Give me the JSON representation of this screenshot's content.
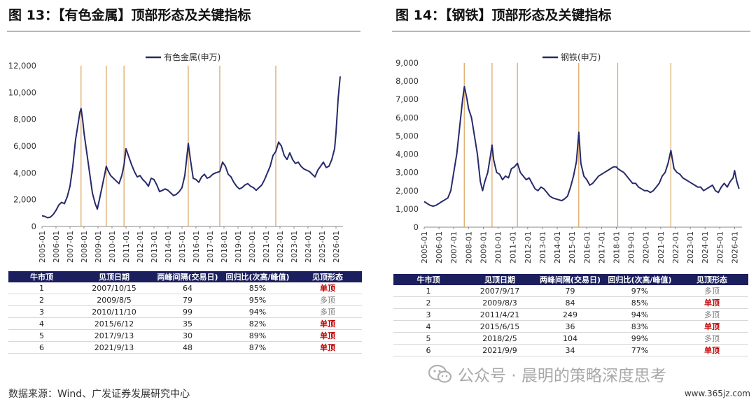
{
  "left": {
    "title": "图 13：【有色金属】顶部形态及关键指标",
    "table": {
      "headers": [
        "牛市顶",
        "见顶日期",
        "两峰间隔(交易日)",
        "回归比(次高/峰值)",
        "见顶形态"
      ],
      "rows": [
        [
          "1",
          "2007/10/15",
          "64",
          "85%",
          "单顶"
        ],
        [
          "2",
          "2009/8/5",
          "79",
          "95%",
          "多顶"
        ],
        [
          "3",
          "2010/11/10",
          "99",
          "94%",
          "多顶"
        ],
        [
          "4",
          "2015/6/12",
          "35",
          "82%",
          "单顶"
        ],
        [
          "5",
          "2017/9/13",
          "30",
          "89%",
          "单顶"
        ],
        [
          "6",
          "2021/9/13",
          "48",
          "87%",
          "单顶"
        ]
      ]
    }
  },
  "right": {
    "title": "图 14：【钢铁】顶部形态及关键指标",
    "table": {
      "headers": [
        "牛市顶",
        "见顶日期",
        "两峰间隔(交易日)",
        "回归比(次高/峰值)",
        "见顶形态"
      ],
      "rows": [
        [
          "1",
          "2007/9/17",
          "79",
          "97%",
          "多顶"
        ],
        [
          "2",
          "2009/8/3",
          "84",
          "85%",
          "单顶"
        ],
        [
          "3",
          "2011/4/21",
          "249",
          "94%",
          "多顶"
        ],
        [
          "4",
          "2015/6/15",
          "36",
          "83%",
          "单顶"
        ],
        [
          "5",
          "2018/2/5",
          "104",
          "99%",
          "多顶"
        ],
        [
          "6",
          "2021/9/9",
          "34",
          "77%",
          "单顶"
        ]
      ]
    }
  },
  "source": "数据来源：Wind、广发证券发展研究中心",
  "watermark": "公众号 · 晨明的策略深度思考",
  "site": "www.365jz.com",
  "colors": {
    "line": "#262a6b",
    "vline": "#d9a25c",
    "header": "#1b1f5e",
    "single": "#c00000"
  },
  "chart_data": [
    {
      "type": "line",
      "legend": "有色金属(申万)",
      "legend_position": "top",
      "ylim": [
        0,
        12000
      ],
      "yticks": [
        0,
        2000,
        4000,
        6000,
        8000,
        10000,
        12000
      ],
      "ytick_labels": [
        "0",
        "2,000",
        "4,000",
        "6,000",
        "8,000",
        "10,000",
        "12,000"
      ],
      "xlim": [
        2005.0,
        2026.5
      ],
      "xtick_labels": [
        "2005-01",
        "2006-01",
        "2007-01",
        "2008-01",
        "2009-01",
        "2010-01",
        "2011-01",
        "2012-01",
        "2013-01",
        "2014-01",
        "2015-01",
        "2016-01",
        "2017-01",
        "2018-01",
        "2019-01",
        "2020-01",
        "2021-01",
        "2022-01",
        "2023-01",
        "2024-01",
        "2025-01",
        "2026-01"
      ],
      "peak_markers": [
        "2007/10/15",
        "2009/8/5",
        "2010/11/10",
        "2015/6/12",
        "2017/9/13",
        "2021/9/13"
      ],
      "series": [
        {
          "name": "有色金属(申万)",
          "x": [
            2005.0,
            2005.2,
            2005.4,
            2005.6,
            2005.8,
            2006.0,
            2006.2,
            2006.4,
            2006.6,
            2006.8,
            2007.0,
            2007.2,
            2007.4,
            2007.6,
            2007.7,
            2007.79,
            2007.9,
            2008.0,
            2008.2,
            2008.4,
            2008.6,
            2008.8,
            2008.95,
            2009.1,
            2009.3,
            2009.5,
            2009.59,
            2009.7,
            2009.9,
            2010.1,
            2010.3,
            2010.5,
            2010.7,
            2010.86,
            2011.0,
            2011.2,
            2011.4,
            2011.6,
            2011.8,
            2012.0,
            2012.2,
            2012.4,
            2012.6,
            2012.8,
            2013.0,
            2013.2,
            2013.4,
            2013.6,
            2013.8,
            2014.0,
            2014.2,
            2014.4,
            2014.6,
            2014.8,
            2015.0,
            2015.2,
            2015.45,
            2015.6,
            2015.8,
            2016.0,
            2016.2,
            2016.4,
            2016.6,
            2016.8,
            2017.0,
            2017.2,
            2017.4,
            2017.7,
            2017.9,
            2018.1,
            2018.3,
            2018.5,
            2018.7,
            2018.9,
            2019.1,
            2019.3,
            2019.5,
            2019.7,
            2019.9,
            2020.1,
            2020.3,
            2020.5,
            2020.7,
            2020.9,
            2021.1,
            2021.3,
            2021.5,
            2021.7,
            2021.9,
            2022.1,
            2022.3,
            2022.5,
            2022.7,
            2022.9,
            2023.1,
            2023.3,
            2023.5,
            2023.7,
            2023.9,
            2024.1,
            2024.3,
            2024.5,
            2024.7,
            2024.9,
            2025.1,
            2025.3,
            2025.5,
            2025.7,
            2025.9,
            2026.0,
            2026.15,
            2026.3
          ],
          "y": [
            800,
            750,
            650,
            700,
            900,
            1200,
            1600,
            1800,
            1700,
            2200,
            3000,
            4500,
            6500,
            7800,
            8500,
            8800,
            8000,
            7000,
            5500,
            4000,
            2500,
            1700,
            1300,
            2000,
            3000,
            4000,
            4500,
            4200,
            3800,
            3600,
            3400,
            3200,
            3800,
            4600,
            5800,
            5200,
            4600,
            4100,
            3700,
            3800,
            3500,
            3300,
            3000,
            3600,
            3500,
            3100,
            2600,
            2700,
            2800,
            2700,
            2500,
            2300,
            2400,
            2600,
            2900,
            3800,
            6200,
            5000,
            3600,
            3500,
            3300,
            3700,
            3900,
            3600,
            3700,
            3900,
            4000,
            4100,
            4800,
            4500,
            3900,
            3700,
            3300,
            3000,
            2800,
            2900,
            3100,
            3200,
            3000,
            2900,
            2700,
            2900,
            3100,
            3500,
            4000,
            4500,
            5300,
            5600,
            6300,
            6000,
            5300,
            5000,
            5500,
            5000,
            4700,
            4800,
            4500,
            4300,
            4200,
            4100,
            3900,
            3700,
            4200,
            4500,
            4800,
            4400,
            4500,
            5000,
            5800,
            7000,
            9500,
            11200
          ]
        }
      ]
    },
    {
      "type": "line",
      "legend": "钢铁(申万)",
      "legend_position": "top",
      "ylim": [
        0,
        9000
      ],
      "yticks": [
        0,
        1000,
        2000,
        3000,
        4000,
        5000,
        6000,
        7000,
        8000,
        9000
      ],
      "ytick_labels": [
        "0",
        "1,000",
        "2,000",
        "3,000",
        "4,000",
        "5,000",
        "6,000",
        "7,000",
        "8,000",
        "9,000"
      ],
      "xlim": [
        2005.0,
        2026.5
      ],
      "xtick_labels": [
        "2005-01",
        "2006-01",
        "2007-01",
        "2008-01",
        "2009-01",
        "2010-01",
        "2011-01",
        "2012-01",
        "2013-01",
        "2014-01",
        "2015-01",
        "2016-01",
        "2017-01",
        "2018-01",
        "2019-01",
        "2020-01",
        "2021-01",
        "2022-01",
        "2023-01",
        "2024-01",
        "2025-01",
        "2026-01"
      ],
      "peak_markers": [
        "2007/9/17",
        "2009/8/3",
        "2011/4/21",
        "2015/6/15",
        "2018/2/5",
        "2021/9/9"
      ],
      "series": [
        {
          "name": "钢铁(申万)",
          "x": [
            2005.0,
            2005.2,
            2005.4,
            2005.6,
            2005.8,
            2006.0,
            2006.2,
            2006.4,
            2006.6,
            2006.8,
            2007.0,
            2007.2,
            2007.4,
            2007.6,
            2007.72,
            2007.9,
            2008.0,
            2008.2,
            2008.4,
            2008.6,
            2008.8,
            2008.95,
            2009.1,
            2009.3,
            2009.5,
            2009.59,
            2009.7,
            2009.9,
            2010.1,
            2010.3,
            2010.5,
            2010.7,
            2010.9,
            2011.1,
            2011.31,
            2011.5,
            2011.7,
            2011.9,
            2012.1,
            2012.3,
            2012.5,
            2012.7,
            2012.9,
            2013.1,
            2013.3,
            2013.5,
            2013.7,
            2013.9,
            2014.1,
            2014.3,
            2014.5,
            2014.7,
            2014.9,
            2015.1,
            2015.3,
            2015.46,
            2015.6,
            2015.8,
            2016.0,
            2016.2,
            2016.4,
            2016.6,
            2016.8,
            2017.0,
            2017.2,
            2017.4,
            2017.6,
            2017.8,
            2018.0,
            2018.1,
            2018.3,
            2018.5,
            2018.7,
            2018.9,
            2019.1,
            2019.3,
            2019.5,
            2019.7,
            2019.9,
            2020.1,
            2020.3,
            2020.5,
            2020.7,
            2020.9,
            2021.1,
            2021.3,
            2021.5,
            2021.69,
            2021.9,
            2022.1,
            2022.3,
            2022.5,
            2022.7,
            2022.9,
            2023.1,
            2023.3,
            2023.5,
            2023.7,
            2023.9,
            2024.1,
            2024.3,
            2024.5,
            2024.7,
            2024.9,
            2025.1,
            2025.3,
            2025.5,
            2025.7,
            2025.9,
            2026.0,
            2026.15,
            2026.3
          ],
          "y": [
            1400,
            1300,
            1200,
            1150,
            1200,
            1300,
            1400,
            1500,
            1600,
            2000,
            3000,
            4000,
            5500,
            7000,
            7700,
            7000,
            6500,
            6000,
            5000,
            4000,
            2500,
            2000,
            2500,
            3000,
            4000,
            4500,
            3700,
            3000,
            2900,
            2600,
            2800,
            2700,
            3200,
            3300,
            3500,
            3000,
            2800,
            2600,
            2700,
            2400,
            2100,
            2000,
            2200,
            2100,
            1900,
            1700,
            1600,
            1550,
            1500,
            1450,
            1550,
            1700,
            2200,
            2800,
            3600,
            5200,
            3500,
            2800,
            2600,
            2300,
            2400,
            2600,
            2800,
            2900,
            3000,
            3100,
            3200,
            3300,
            3300,
            3200,
            3100,
            3000,
            2800,
            2600,
            2400,
            2400,
            2200,
            2100,
            2000,
            2000,
            1900,
            2000,
            2200,
            2400,
            2800,
            3000,
            3500,
            4200,
            3200,
            3000,
            2900,
            2700,
            2600,
            2500,
            2400,
            2300,
            2200,
            2200,
            2000,
            2100,
            2200,
            2300,
            2000,
            1900,
            2200,
            2400,
            2200,
            2500,
            2700,
            3100,
            2500,
            2100
          ]
        }
      ]
    }
  ]
}
